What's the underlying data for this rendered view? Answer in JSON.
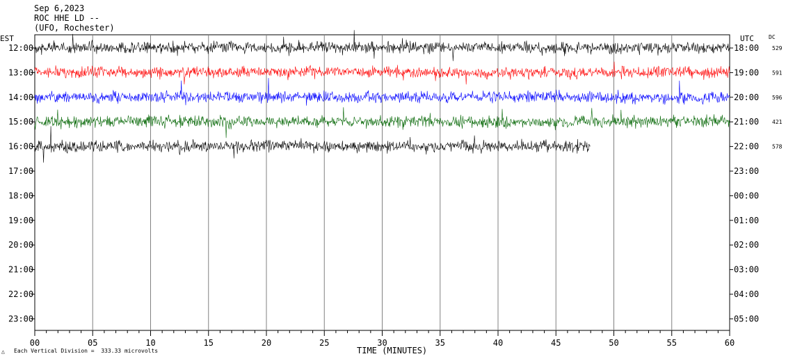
{
  "header": {
    "date": "Sep 6,2023",
    "station": "ROC HHE LD --",
    "network": "(UFO, Rochester)"
  },
  "chart_data": {
    "type": "line",
    "title": "Sep 6,2023",
    "xlabel": "TIME (MINUTES)",
    "xlim": [
      0,
      60
    ],
    "x_ticks": [
      "00",
      "05",
      "10",
      "15",
      "20",
      "25",
      "30",
      "35",
      "40",
      "45",
      "50",
      "55",
      "60"
    ],
    "left_timezone": "EST",
    "right_timezone": "UTC",
    "dc_label": "DC",
    "rows_local": [
      "12:00",
      "13:00",
      "14:00",
      "15:00",
      "16:00",
      "17:00",
      "18:00",
      "19:00",
      "20:00",
      "21:00",
      "22:00",
      "23:00"
    ],
    "rows_utc": [
      "18:00",
      "19:00",
      "20:00",
      "21:00",
      "22:00",
      "23:00",
      "00:00",
      "01:00",
      "02:00",
      "03:00",
      "04:00",
      "05:00"
    ],
    "dc_offsets": [
      "529",
      "591",
      "596",
      "421",
      "578"
    ],
    "series": [
      {
        "row": "12:00",
        "color": "#000000",
        "end_minute": 60
      },
      {
        "row": "13:00",
        "color": "#ff0000",
        "end_minute": 60
      },
      {
        "row": "14:00",
        "color": "#0000ff",
        "end_minute": 60
      },
      {
        "row": "15:00",
        "color": "#006400",
        "end_minute": 60
      },
      {
        "row": "16:00",
        "color": "#000000",
        "end_minute": 48
      }
    ],
    "grid": "vertical",
    "footnote": "Each Vertical Division =  333.33 microvolts"
  }
}
